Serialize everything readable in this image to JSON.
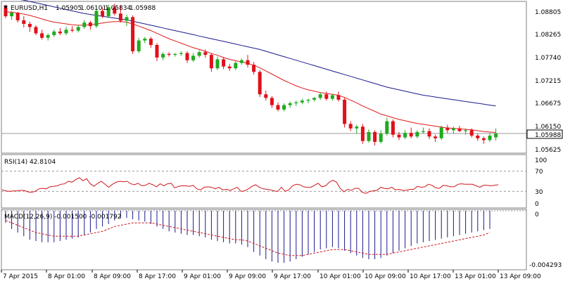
{
  "header": {
    "symbol": "EURUSD,H1",
    "open": "1.05905",
    "high": "1.06101",
    "low": "1.05834",
    "close": "1.05988"
  },
  "colors": {
    "up": "#1faa1f",
    "down": "#e0101a",
    "ma_fast": "#e01a1a",
    "ma_slow": "#1a1a8c",
    "rsi": "#d0161c",
    "macd_hist": "#1a1a8c",
    "macd_signal": "#d0161c",
    "grid": "#9a9a9a",
    "price_tag_bg": "#ffffff"
  },
  "rsi_panel": {
    "label": "RSI(14) 42.8104",
    "levels": [
      "100",
      "70",
      "30",
      "0"
    ]
  },
  "macd_panel": {
    "label": "MACD(12,26,9) -0.001500 -0.001792",
    "levels": [
      "0",
      "-0.004293"
    ]
  },
  "time_labels": [
    "7 Apr 2015",
    "8 Apr 01:00",
    "8 Apr 09:00",
    "8 Apr 17:00",
    "9 Apr 01:00",
    "9 Apr 09:00",
    "9 Apr 17:00",
    "10 Apr 01:00",
    "10 Apr 09:00",
    "10 Apr 17:00",
    "13 Apr 01:00",
    "13 Apr 09:00"
  ],
  "chart_data": {
    "type": "candlestick",
    "title": "EURUSD,H1",
    "price_axis_ticks": [
      "1.08805",
      "1.08265",
      "1.07740",
      "1.07215",
      "1.06675",
      "1.06150",
      "1.05625"
    ],
    "current_price": "1.05988",
    "ylim": [
      1.0558,
      1.089
    ],
    "candles": [
      [
        1.088,
        1.0886,
        1.0856,
        1.086
      ],
      [
        1.086,
        1.0872,
        1.0852,
        1.0868
      ],
      [
        1.0868,
        1.087,
        1.0846,
        1.0851
      ],
      [
        1.0851,
        1.086,
        1.0835,
        1.0843
      ],
      [
        1.0843,
        1.0848,
        1.0825,
        1.0836
      ],
      [
        1.0836,
        1.084,
        1.0818,
        1.0822
      ],
      [
        1.0822,
        1.083,
        1.0808,
        1.0812
      ],
      [
        1.0812,
        1.0822,
        1.0806,
        1.0818
      ],
      [
        1.0818,
        1.083,
        1.0814,
        1.0826
      ],
      [
        1.0826,
        1.0834,
        1.0818,
        1.0822
      ],
      [
        1.0822,
        1.0836,
        1.0818,
        1.083
      ],
      [
        1.083,
        1.0838,
        1.0824,
        1.0828
      ],
      [
        1.0828,
        1.084,
        1.0824,
        1.0836
      ],
      [
        1.0836,
        1.0852,
        1.0832,
        1.0846
      ],
      [
        1.0846,
        1.085,
        1.083,
        1.0838
      ],
      [
        1.0838,
        1.0884,
        1.0834,
        1.0872
      ],
      [
        1.0872,
        1.088,
        1.0856,
        1.086
      ],
      [
        1.086,
        1.0886,
        1.0856,
        1.088
      ],
      [
        1.088,
        1.0888,
        1.0862,
        1.0866
      ],
      [
        1.0866,
        1.0885,
        1.0846,
        1.085
      ],
      [
        1.085,
        1.0864,
        1.0838,
        1.0858
      ],
      [
        1.0858,
        1.0862,
        1.0776,
        1.0782
      ],
      [
        1.0782,
        1.0812,
        1.0778,
        1.0806
      ],
      [
        1.0806,
        1.0814,
        1.08,
        1.081
      ],
      [
        1.081,
        1.0814,
        1.079,
        1.0796
      ],
      [
        1.0796,
        1.08,
        1.076,
        1.0768
      ],
      [
        1.0768,
        1.078,
        1.0762,
        1.0776
      ],
      [
        1.0776,
        1.078,
        1.077,
        1.0774
      ],
      [
        1.0774,
        1.0778,
        1.077,
        1.0776
      ],
      [
        1.0776,
        1.0782,
        1.0772,
        1.0778
      ],
      [
        1.0778,
        1.0782,
        1.0756,
        1.0762
      ],
      [
        1.0762,
        1.0778,
        1.0758,
        1.0772
      ],
      [
        1.0772,
        1.0784,
        1.0768,
        1.078
      ],
      [
        1.078,
        1.0786,
        1.0768,
        1.0774
      ],
      [
        1.0774,
        1.0778,
        1.0736,
        1.0744
      ],
      [
        1.0744,
        1.077,
        1.074,
        1.0764
      ],
      [
        1.0764,
        1.0768,
        1.0742,
        1.0748
      ],
      [
        1.0748,
        1.0754,
        1.0738,
        1.0744
      ],
      [
        1.0744,
        1.076,
        1.074,
        1.0756
      ],
      [
        1.0756,
        1.0766,
        1.0752,
        1.0762
      ],
      [
        1.0762,
        1.0774,
        1.0746,
        1.0752
      ],
      [
        1.0752,
        1.0758,
        1.073,
        1.0736
      ],
      [
        1.0736,
        1.074,
        1.068,
        1.0686
      ],
      [
        1.0686,
        1.0694,
        1.0672,
        1.0678
      ],
      [
        1.0678,
        1.0682,
        1.0656,
        1.0662
      ],
      [
        1.0662,
        1.0668,
        1.0648,
        1.0652
      ],
      [
        1.0652,
        1.0666,
        1.0648,
        1.0662
      ],
      [
        1.0662,
        1.067,
        1.0656,
        1.0666
      ],
      [
        1.0666,
        1.0672,
        1.066,
        1.0668
      ],
      [
        1.0668,
        1.0676,
        1.0664,
        1.0672
      ],
      [
        1.0672,
        1.0676,
        1.0666,
        1.0674
      ],
      [
        1.0674,
        1.068,
        1.067,
        1.0678
      ],
      [
        1.0678,
        1.069,
        1.0674,
        1.0686
      ],
      [
        1.0686,
        1.0692,
        1.0672,
        1.0676
      ],
      [
        1.0676,
        1.0686,
        1.0672,
        1.0684
      ],
      [
        1.0684,
        1.0692,
        1.067,
        1.0674
      ],
      [
        1.0674,
        1.0678,
        1.0612,
        1.062
      ],
      [
        1.062,
        1.0626,
        1.0604,
        1.061
      ],
      [
        1.061,
        1.0618,
        1.0598,
        1.0614
      ],
      [
        1.0614,
        1.062,
        1.0576,
        1.0582
      ],
      [
        1.0582,
        1.0608,
        1.0578,
        1.0602
      ],
      [
        1.0602,
        1.0606,
        1.0572,
        1.058
      ],
      [
        1.058,
        1.0606,
        1.0576,
        1.0598
      ],
      [
        1.0598,
        1.0634,
        1.0594,
        1.0626
      ],
      [
        1.0626,
        1.063,
        1.059,
        1.0596
      ],
      [
        1.0596,
        1.0602,
        1.0584,
        1.059
      ],
      [
        1.059,
        1.0606,
        1.0586,
        1.06
      ],
      [
        1.06,
        1.0612,
        1.0588,
        1.0592
      ],
      [
        1.0592,
        1.0606,
        1.0588,
        1.0602
      ],
      [
        1.0602,
        1.0612,
        1.0598,
        1.0604
      ],
      [
        1.0604,
        1.061,
        1.0586,
        1.0592
      ],
      [
        1.0592,
        1.0596,
        1.058,
        1.0588
      ],
      [
        1.0588,
        1.0616,
        1.0584,
        1.0612
      ],
      [
        1.0612,
        1.0618,
        1.06,
        1.0606
      ],
      [
        1.0606,
        1.0614,
        1.0598,
        1.061
      ],
      [
        1.061,
        1.0616,
        1.0602,
        1.0604
      ],
      [
        1.0604,
        1.061,
        1.0596,
        1.0606
      ],
      [
        1.0606,
        1.061,
        1.059,
        1.0594
      ],
      [
        1.0594,
        1.0598,
        1.0582,
        1.0588
      ],
      [
        1.0588,
        1.0592,
        1.0576,
        1.0584
      ],
      [
        1.0584,
        1.06,
        1.058,
        1.0594
      ],
      [
        1.059,
        1.061,
        1.0583,
        1.0599
      ]
    ],
    "ma_fast": [
      1.087,
      1.0869,
      1.0867,
      1.0865,
      1.0862,
      1.0858,
      1.0854,
      1.085,
      1.0847,
      1.0845,
      1.0843,
      1.0841,
      1.084,
      1.084,
      1.0841,
      1.0843,
      1.0845,
      1.0847,
      1.0848,
      1.0848,
      1.0847,
      1.0843,
      1.0838,
      1.0833,
      1.0828,
      1.0822,
      1.0816,
      1.081,
      1.0805,
      1.08,
      1.0795,
      1.079,
      1.0786,
      1.0782,
      1.0777,
      1.0773,
      1.0768,
      1.0764,
      1.0761,
      1.0758,
      1.0755,
      1.0751,
      1.0745,
      1.0738,
      1.0731,
      1.0724,
      1.0717,
      1.0711,
      1.0705,
      1.07,
      1.0696,
      1.0693,
      1.069,
      1.0688,
      1.0686,
      1.0684,
      1.0679,
      1.0673,
      1.0667,
      1.066,
      1.0654,
      1.0648,
      1.0642,
      1.0638,
      1.0634,
      1.063,
      1.0627,
      1.0624,
      1.0621,
      1.0619,
      1.0617,
      1.0615,
      1.0613,
      1.0611,
      1.061,
      1.0609,
      1.0608,
      1.0607,
      1.0605,
      1.0603,
      1.0602,
      1.0601
    ],
    "ma_slow": [
      1.0902,
      1.09,
      1.0898,
      1.0896,
      1.0893,
      1.089,
      1.0887,
      1.0884,
      1.0881,
      1.0878,
      1.0875,
      1.0872,
      1.0869,
      1.0866,
      1.0864,
      1.0862,
      1.086,
      1.0858,
      1.0856,
      1.0854,
      1.0852,
      1.0849,
      1.0846,
      1.0843,
      1.084,
      1.0837,
      1.0834,
      1.0831,
      1.0828,
      1.0825,
      1.0822,
      1.0819,
      1.0816,
      1.0813,
      1.081,
      1.0807,
      1.0804,
      1.0801,
      1.0798,
      1.0795,
      1.0792,
      1.0789,
      1.0786,
      1.0782,
      1.0778,
      1.0774,
      1.077,
      1.0766,
      1.0762,
      1.0758,
      1.0754,
      1.075,
      1.0746,
      1.0742,
      1.0738,
      1.0734,
      1.073,
      1.0726,
      1.0722,
      1.0718,
      1.0714,
      1.071,
      1.0706,
      1.0702,
      1.0699,
      1.0696,
      1.0693,
      1.069,
      1.0687,
      1.0684,
      1.0682,
      1.068,
      1.0678,
      1.0676,
      1.0674,
      1.0672,
      1.067,
      1.0668,
      1.0666,
      1.0664,
      1.0662,
      1.066
    ],
    "rsi": [
      33,
      31,
      30,
      31,
      31,
      32,
      32,
      29,
      28,
      30,
      35,
      36,
      35,
      39,
      40,
      41,
      44,
      45,
      50,
      48,
      53,
      57,
      51,
      55,
      45,
      40,
      46,
      50,
      44,
      38,
      44,
      48,
      50,
      49,
      50,
      45,
      43,
      46,
      41,
      42,
      46,
      43,
      39,
      45,
      41,
      45,
      46,
      37,
      40,
      41,
      41,
      40,
      42,
      35,
      33,
      38,
      39,
      38,
      35,
      38,
      33,
      34,
      32,
      35,
      38,
      30,
      31,
      35,
      40,
      43,
      38,
      35,
      34,
      33,
      31,
      30,
      38,
      30,
      33,
      41,
      44,
      43,
      39,
      38,
      38,
      42,
      46,
      39,
      41,
      48,
      52,
      48,
      36,
      29,
      34,
      32,
      36,
      36,
      28,
      26,
      30,
      31,
      32,
      38,
      36,
      35,
      38,
      33,
      34,
      32,
      32,
      34,
      34,
      40,
      38,
      39,
      44,
      42,
      37,
      36,
      42,
      41,
      39,
      39,
      44,
      45,
      44,
      44,
      44,
      41,
      38,
      42,
      42,
      41,
      42,
      43
    ],
    "macd_hist": [
      -0.001,
      -0.0015,
      -0.0018,
      -0.0021,
      -0.0024,
      -0.0025,
      -0.0026,
      -0.0026,
      -0.0026,
      -0.0025,
      -0.0024,
      -0.0023,
      -0.0022,
      -0.002,
      -0.0018,
      -0.0015,
      -0.0013,
      -0.0011,
      -0.0008,
      -0.0006,
      -0.0006,
      -0.0007,
      -0.0008,
      -0.0009,
      -0.0011,
      -0.0013,
      -0.0015,
      -0.0017,
      -0.0018,
      -0.0019,
      -0.002,
      -0.002,
      -0.0021,
      -0.0022,
      -0.0024,
      -0.0025,
      -0.0026,
      -0.0027,
      -0.0027,
      -0.0028,
      -0.003,
      -0.0034,
      -0.0037,
      -0.004,
      -0.0042,
      -0.0043,
      -0.0043,
      -0.0042,
      -0.004,
      -0.0038,
      -0.0036,
      -0.0034,
      -0.0032,
      -0.0031,
      -0.003,
      -0.0031,
      -0.0033,
      -0.0035,
      -0.0037,
      -0.0039,
      -0.004,
      -0.004,
      -0.0039,
      -0.0037,
      -0.0035,
      -0.0033,
      -0.0031,
      -0.0029,
      -0.0027,
      -0.0026,
      -0.0025,
      -0.0024,
      -0.0023,
      -0.0022,
      -0.0021,
      -0.002,
      -0.0019,
      -0.0018,
      -0.0017,
      -0.0016,
      -0.0015
    ],
    "macd_signal": [
      -0.0008,
      -0.001,
      -0.0012,
      -0.0014,
      -0.0016,
      -0.0018,
      -0.0019,
      -0.002,
      -0.0021,
      -0.0021,
      -0.0021,
      -0.0021,
      -0.0021,
      -0.002,
      -0.0019,
      -0.0018,
      -0.0017,
      -0.0015,
      -0.0013,
      -0.0012,
      -0.0011,
      -0.001,
      -0.001,
      -0.001,
      -0.001,
      -0.0011,
      -0.0012,
      -0.0013,
      -0.0014,
      -0.0015,
      -0.0016,
      -0.0017,
      -0.0018,
      -0.0019,
      -0.002,
      -0.0021,
      -0.0022,
      -0.0023,
      -0.0024,
      -0.0024,
      -0.0025,
      -0.0027,
      -0.0029,
      -0.0031,
      -0.0033,
      -0.0035,
      -0.0036,
      -0.0037,
      -0.0037,
      -0.0037,
      -0.0036,
      -0.0035,
      -0.0034,
      -0.0033,
      -0.0032,
      -0.0032,
      -0.0032,
      -0.0033,
      -0.0034,
      -0.0035,
      -0.0036,
      -0.0036,
      -0.0036,
      -0.0036,
      -0.0035,
      -0.0034,
      -0.0033,
      -0.0032,
      -0.0031,
      -0.003,
      -0.0029,
      -0.0028,
      -0.0027,
      -0.0026,
      -0.0025,
      -0.0024,
      -0.0023,
      -0.0022,
      -0.0021,
      -0.002,
      -0.0018
    ]
  }
}
